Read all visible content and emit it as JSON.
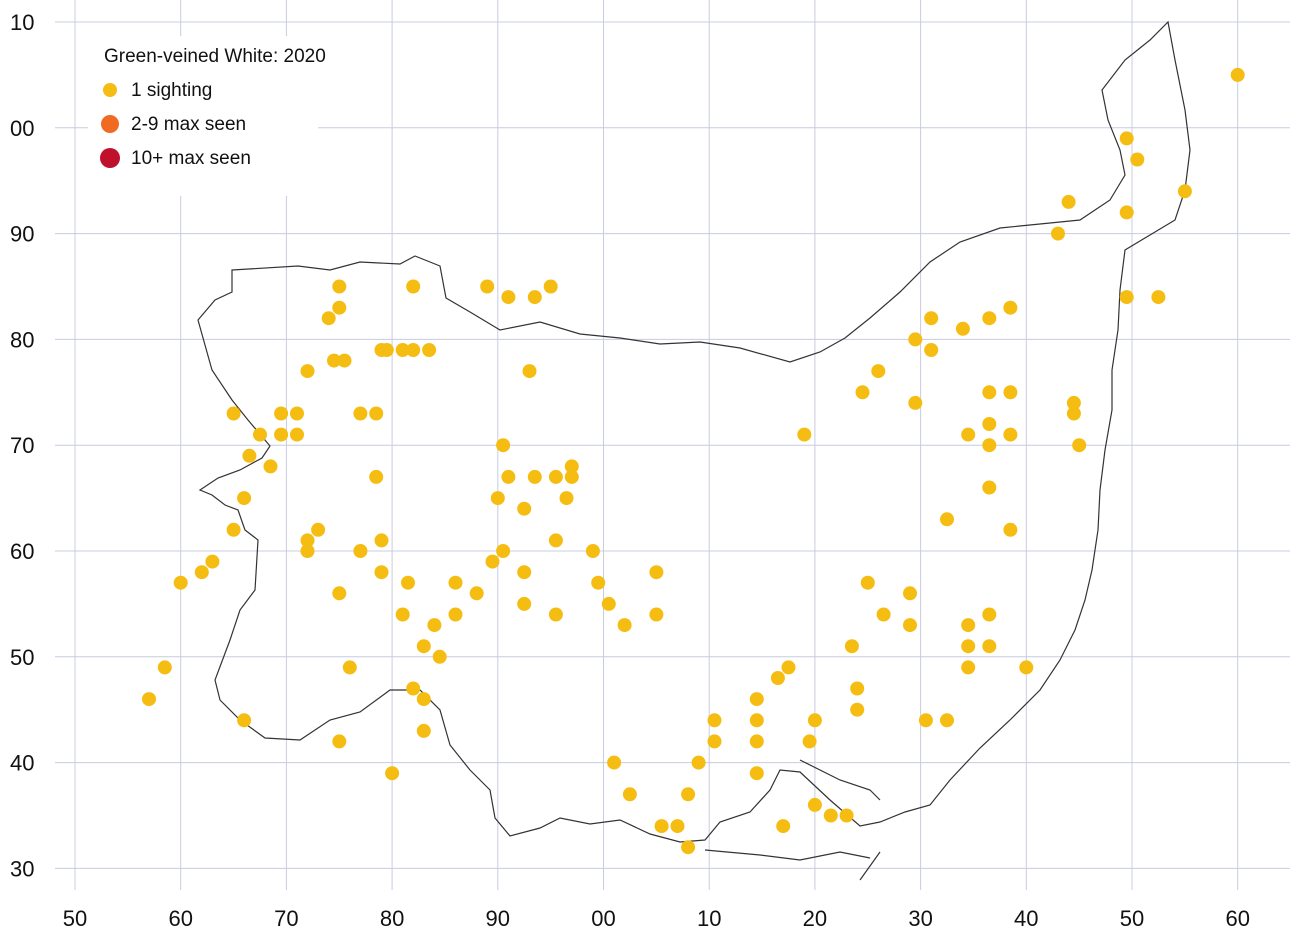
{
  "map": {
    "title": "Green-veined White:  2020",
    "x_ticks": [
      "50",
      "60",
      "70",
      "80",
      "90",
      "00",
      "10",
      "20",
      "30",
      "40",
      "50",
      "60"
    ],
    "y_ticks": [
      "10",
      "00",
      "90",
      "80",
      "70",
      "60",
      "50",
      "40",
      "30"
    ],
    "legend": [
      {
        "label": "1 sighting",
        "color": "#f5bd12"
      },
      {
        "label": "2-9 max seen",
        "color": "#f06a23"
      },
      {
        "label": "10+ max seen",
        "color": "#c0102e"
      }
    ],
    "grid_color": "#c8cce0",
    "outline_color": "#333333"
  },
  "chart_data": {
    "type": "scatter",
    "x_index_range": [
      0,
      11
    ],
    "y_index_range": [
      0,
      8
    ],
    "series": [
      {
        "name": "1 sighting",
        "color": "#f5bd12",
        "points": [
          [
            11.0,
            0.5
          ],
          [
            9.95,
            1.1
          ],
          [
            10.5,
            1.6
          ],
          [
            10.05,
            1.3
          ],
          [
            9.4,
            1.7
          ],
          [
            9.3,
            2.0
          ],
          [
            9.95,
            1.8
          ],
          [
            9.95,
            2.6
          ],
          [
            10.25,
            2.6
          ],
          [
            8.4,
            2.9
          ],
          [
            8.85,
            2.7
          ],
          [
            8.65,
            2.8
          ],
          [
            8.1,
            2.8
          ],
          [
            7.95,
            3.0
          ],
          [
            8.1,
            3.1
          ],
          [
            7.6,
            3.3
          ],
          [
            7.45,
            3.5
          ],
          [
            7.95,
            3.6
          ],
          [
            8.65,
            3.5
          ],
          [
            8.65,
            3.8
          ],
          [
            8.45,
            3.9
          ],
          [
            8.65,
            4.0
          ],
          [
            8.85,
            3.5
          ],
          [
            8.85,
            3.9
          ],
          [
            9.45,
            3.6
          ],
          [
            9.45,
            3.7
          ],
          [
            9.5,
            4.0
          ],
          [
            6.9,
            3.9
          ],
          [
            8.65,
            4.4
          ],
          [
            8.25,
            4.7
          ],
          [
            8.85,
            4.8
          ],
          [
            7.5,
            5.3
          ],
          [
            7.9,
            5.4
          ],
          [
            8.45,
            5.7
          ],
          [
            8.65,
            5.6
          ],
          [
            7.65,
            5.6
          ],
          [
            7.9,
            5.7
          ],
          [
            8.45,
            5.9
          ],
          [
            8.65,
            5.9
          ],
          [
            8.45,
            6.1
          ],
          [
            9.0,
            6.1
          ],
          [
            8.25,
            6.6
          ],
          [
            8.05,
            6.6
          ],
          [
            7.35,
            5.9
          ],
          [
            7.4,
            6.3
          ],
          [
            7.4,
            6.5
          ],
          [
            7.0,
            6.6
          ],
          [
            6.95,
            6.8
          ],
          [
            6.75,
            6.1
          ],
          [
            6.65,
            6.2
          ],
          [
            6.45,
            6.4
          ],
          [
            6.45,
            6.6
          ],
          [
            6.45,
            6.8
          ],
          [
            6.45,
            7.1
          ],
          [
            6.05,
            6.6
          ],
          [
            6.05,
            6.8
          ],
          [
            5.9,
            7.0
          ],
          [
            5.8,
            7.3
          ],
          [
            5.7,
            7.6
          ],
          [
            5.8,
            7.8
          ],
          [
            5.55,
            7.6
          ],
          [
            5.25,
            7.3
          ],
          [
            5.1,
            7.0
          ],
          [
            6.7,
            7.6
          ],
          [
            7.0,
            7.4
          ],
          [
            7.3,
            7.5
          ],
          [
            7.15,
            7.5
          ],
          [
            4.7,
            4.2
          ],
          [
            4.7,
            4.3
          ],
          [
            4.35,
            4.3
          ],
          [
            4.55,
            4.3
          ],
          [
            4.25,
            4.6
          ],
          [
            4.05,
            4.0
          ],
          [
            4.1,
            4.3
          ],
          [
            4.0,
            4.5
          ],
          [
            3.95,
            5.1
          ],
          [
            4.55,
            4.9
          ],
          [
            4.55,
            5.6
          ],
          [
            4.65,
            4.5
          ],
          [
            4.9,
            5.0
          ],
          [
            4.95,
            5.3
          ],
          [
            5.05,
            5.5
          ],
          [
            5.2,
            5.7
          ],
          [
            5.5,
            5.6
          ],
          [
            5.5,
            5.2
          ],
          [
            4.05,
            5.0
          ],
          [
            4.25,
            5.2
          ],
          [
            4.25,
            5.5
          ],
          [
            3.6,
            5.3
          ],
          [
            3.8,
            5.4
          ],
          [
            3.6,
            5.6
          ],
          [
            3.4,
            5.7
          ],
          [
            3.45,
            6.0
          ],
          [
            3.2,
            6.3
          ],
          [
            3.0,
            7.1
          ],
          [
            3.3,
            6.7
          ],
          [
            3.3,
            6.4
          ],
          [
            3.3,
            5.9
          ],
          [
            3.1,
            5.6
          ],
          [
            3.15,
            5.3
          ],
          [
            2.9,
            5.2
          ],
          [
            2.5,
            5.4
          ],
          [
            2.9,
            4.9
          ],
          [
            2.7,
            5.0
          ],
          [
            2.6,
            6.1
          ],
          [
            2.5,
            6.8
          ],
          [
            2.3,
            4.8
          ],
          [
            2.2,
            4.9
          ],
          [
            1.6,
            4.5
          ],
          [
            1.5,
            4.8
          ],
          [
            1.2,
            5.2
          ],
          [
            1.0,
            5.3
          ],
          [
            0.85,
            6.1
          ],
          [
            0.7,
            6.4
          ],
          [
            1.6,
            6.6
          ],
          [
            1.3,
            5.1
          ],
          [
            2.2,
            5.0
          ],
          [
            2.85,
            4.3
          ],
          [
            3.9,
            2.5
          ],
          [
            4.1,
            2.6
          ],
          [
            4.35,
            2.6
          ],
          [
            3.2,
            2.5
          ],
          [
            2.9,
            3.1
          ],
          [
            2.5,
            2.5
          ],
          [
            2.5,
            2.7
          ],
          [
            2.45,
            3.2
          ],
          [
            2.4,
            2.8
          ],
          [
            2.2,
            3.3
          ],
          [
            2.1,
            3.9
          ],
          [
            1.95,
            3.9
          ],
          [
            2.1,
            3.7
          ],
          [
            1.95,
            3.7
          ],
          [
            1.75,
            3.9
          ],
          [
            1.85,
            4.2
          ],
          [
            1.65,
            4.1
          ],
          [
            1.5,
            3.7
          ],
          [
            2.55,
            3.2
          ],
          [
            2.7,
            3.7
          ],
          [
            2.95,
            3.1
          ],
          [
            3.1,
            3.1
          ],
          [
            3.2,
            3.1
          ],
          [
            3.35,
            3.1
          ],
          [
            2.85,
            3.7
          ],
          [
            4.3,
            3.3
          ],
          [
            4.5,
            2.5
          ]
        ]
      },
      {
        "name": "2-9 max seen",
        "color": "#f06a23",
        "points": []
      },
      {
        "name": "10+ max seen",
        "color": "#c0102e",
        "points": []
      }
    ]
  }
}
